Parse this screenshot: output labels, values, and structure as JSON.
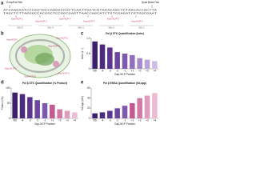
{
  "panel_labels": [
    "a",
    "b",
    "c",
    "d",
    "e"
  ],
  "sequence": {
    "entry_label": "Entry/Exit Site",
    "dyad_label": "Dyad Base Pair",
    "top_strand": "ATCGAGAATCCCGGTGCCGAGGCCGCTCAATTGGTCGTAGACAGCTCTAGCACCGCTTA",
    "bottom_strand": "TAGCTCTTAGGGCCACGGCTCCGGCGAGTTAACCAGCATCTGTCGAGATCGTGGCGAAT",
    "gap_labels": [
      "Gap-NCP-1",
      "Gap-NCP-2",
      "Gap-NCP-3",
      "Gap-NCP-4",
      "Gap-NCP-5",
      "Gap-NCP-6"
    ],
    "shl_labels": [
      "SHL-5",
      "SHL-4",
      "SHL-3",
      "SHL-2",
      "SHL-1"
    ]
  },
  "structure_labels": [
    "Gap-NCP-1",
    "Gap-NCP-2",
    "Gap-NCP-3",
    "Gap-NCP-4",
    "Gap-NCP-5",
    "Gap-NCP-6"
  ],
  "chart_data": [
    {
      "type": "bar",
      "title": "Pol β STK Quantification (kobs)",
      "ylabel": "kobs (s⁻¹)",
      "xlabel": "Gap-NCP Position",
      "categories": [
        "ND",
        "-4",
        "-3",
        "-2",
        "-1",
        "+1",
        "+2",
        "+3",
        "+4"
      ],
      "values": [
        0.9,
        0.8,
        0.7,
        0.55,
        0.5,
        0.45,
        0.35,
        0.3,
        0.25
      ],
      "colors": [
        "#3b1f6b",
        "#4b2a80",
        "#5a3590",
        "#6b459e",
        "#7d58ad",
        "#9070bd",
        "#a489cb",
        "#b9a3d9",
        "#cdbde6"
      ],
      "ylim": [
        0,
        1
      ],
      "yticks": [
        0,
        0.5,
        {
          "value": 1,
          "label": "1.0"
        }
      ]
    },
    {
      "type": "bar",
      "title": "Pol β STK Quantification (% Product)",
      "ylabel": "Product (%)",
      "xlabel": "Gap-NCP Position",
      "categories": [
        "ND",
        "-4",
        "-3",
        "-2",
        "-1",
        "+1",
        "+2",
        "+3",
        "+4"
      ],
      "values": [
        85,
        80,
        70,
        60,
        50,
        45,
        30,
        25,
        20
      ],
      "colors": [
        "#3b1f6b",
        "#4b2a80",
        "#5a3590",
        "#6b459e",
        "#7d58ad",
        "#c25a8f",
        "#d27aa5",
        "#e09cbd",
        "#ecbcd3"
      ],
      "ylim": [
        0,
        100
      ],
      "yticks": [
        0,
        50,
        100
      ]
    },
    {
      "type": "bar",
      "title": "Pol β EMSA Quantification (Kd,app)",
      "ylabel": "Kd,app (nM)",
      "xlabel": "Gap-NCP Position",
      "categories": [
        "ND",
        "-4",
        "-3",
        "-2",
        "-1",
        "+1",
        "+2",
        "+3",
        "+4"
      ],
      "values": [
        10,
        12,
        15,
        20,
        25,
        30,
        40,
        45,
        50
      ],
      "colors": [
        "#3b1f6b",
        "#4b2a80",
        "#5a3590",
        "#6b459e",
        "#7d58ad",
        "#c25a8f",
        "#d27aa5",
        "#e09cbd",
        "#ecbcd3"
      ],
      "ylim": [
        0,
        60
      ],
      "yticks": [
        0,
        20,
        40,
        60
      ]
    }
  ]
}
